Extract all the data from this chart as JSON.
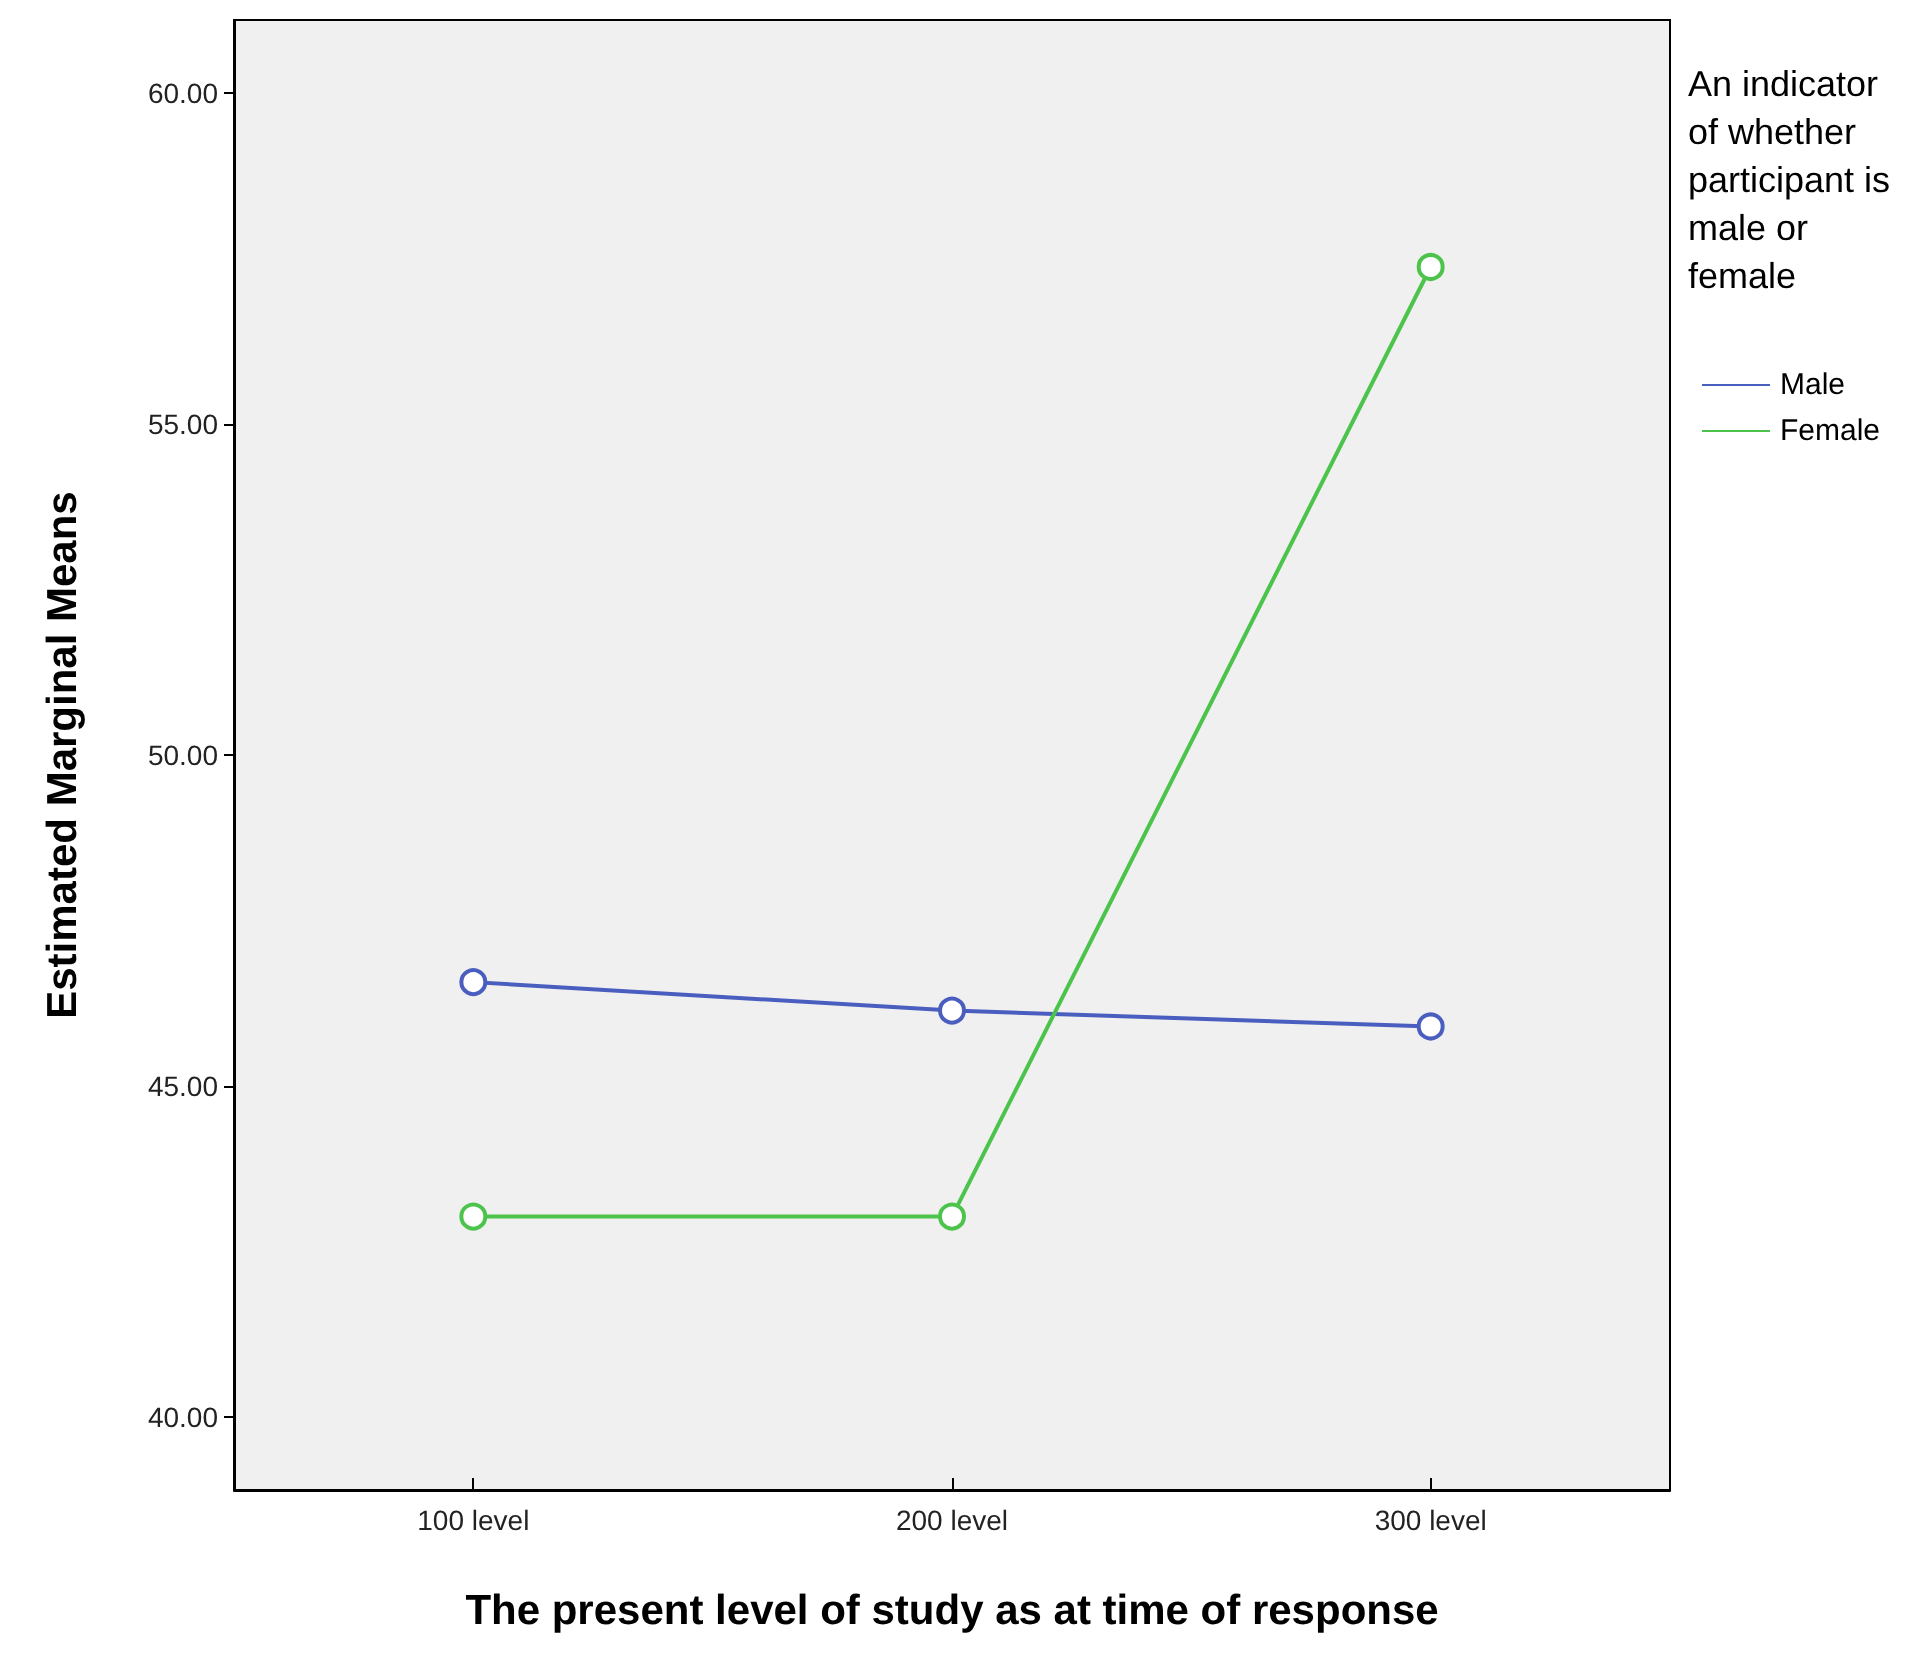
{
  "chart_data": {
    "type": "line",
    "xlabel": "The present level of study as at time of response",
    "ylabel": "Estimated Marginal Means",
    "legend_title": "An indicator of whether participant is male or female",
    "categories": [
      "100 level",
      "200 level",
      "300 level"
    ],
    "series": [
      {
        "name": "Male",
        "color": "#4a5ec0",
        "values": [
          46.57,
          46.14,
          45.9
        ]
      },
      {
        "name": "Female",
        "color": "#4cc44c",
        "values": [
          43.03,
          43.03,
          57.37
        ]
      }
    ],
    "ylim": [
      38.9,
      61.1
    ],
    "yticks": [
      {
        "value": 40,
        "label": "40.00"
      },
      {
        "value": 45,
        "label": "45.00"
      },
      {
        "value": 50,
        "label": "50.00"
      },
      {
        "value": 55,
        "label": "55.00"
      },
      {
        "value": 60,
        "label": "60.00"
      }
    ],
    "grid": false,
    "legend": "right",
    "marker": "circle",
    "line_style": "solid"
  }
}
